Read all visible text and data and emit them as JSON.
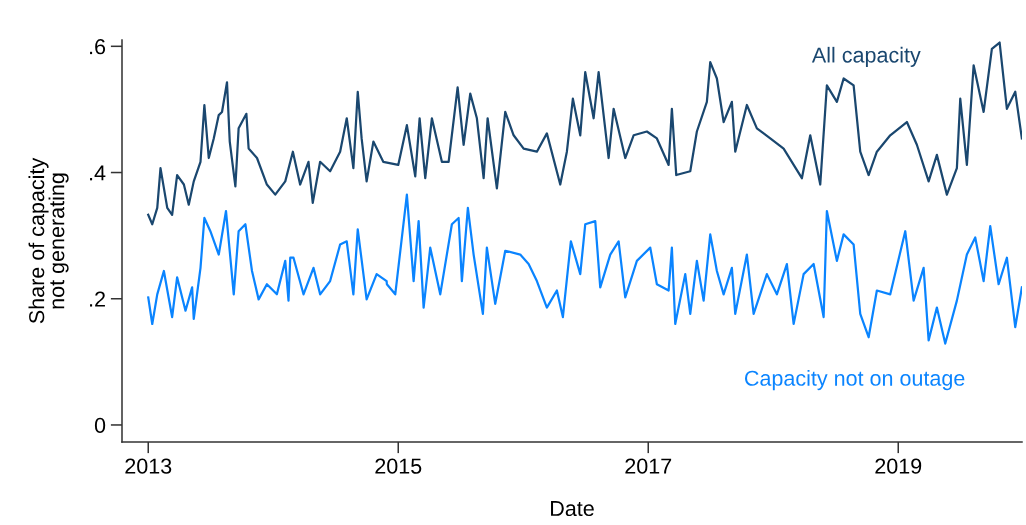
{
  "chart_data": {
    "type": "line",
    "xlabel": "Date",
    "ylabel": "Share of capacity\nnot generating",
    "xlim": [
      2012.79,
      2019.99
    ],
    "xticks": [
      2013,
      2015,
      2017,
      2019
    ],
    "ylim": [
      -0.027,
      0.61
    ],
    "yticks": [
      0,
      {
        "value": 0.2,
        "label": ".2"
      },
      {
        "value": 0.4,
        "label": ".4"
      },
      {
        "value": 0.6,
        "label": ".6"
      }
    ],
    "grid": false,
    "legend": false,
    "line_style": "solid",
    "marker": "none",
    "series": [
      {
        "name": "All capacity",
        "color": "#1a476f",
        "x": [
          2013.0,
          2013.032,
          2013.072,
          2013.098,
          2013.152,
          2013.191,
          2013.231,
          2013.285,
          2013.324,
          2013.364,
          2013.418,
          2013.449,
          2013.484,
          2013.524,
          2013.564,
          2013.59,
          2013.63,
          2013.652,
          2013.697,
          2013.723,
          2013.785,
          2013.803,
          2013.87,
          2013.949,
          2014.016,
          2014.096,
          2014.157,
          2014.215,
          2014.282,
          2014.316,
          2014.375,
          2014.455,
          2014.535,
          2014.588,
          2014.641,
          2014.676,
          2014.707,
          2014.747,
          2014.801,
          2014.88,
          2015.0,
          2015.069,
          2015.136,
          2015.171,
          2015.216,
          2015.269,
          2015.349,
          2015.403,
          2015.475,
          2015.523,
          2015.576,
          2015.629,
          2015.683,
          2015.715,
          2015.789,
          2015.856,
          2015.923,
          2016.003,
          2016.109,
          2016.189,
          2016.296,
          2016.349,
          2016.397,
          2016.456,
          2016.496,
          2016.563,
          2016.603,
          2016.683,
          2016.723,
          2016.816,
          2016.883,
          2016.989,
          2017.069,
          2017.163,
          2017.189,
          2017.224,
          2017.336,
          2017.389,
          2017.469,
          2017.496,
          2017.549,
          2017.603,
          2017.669,
          2017.696,
          2017.789,
          2017.869,
          2017.976,
          2018.083,
          2018.229,
          2018.296,
          2018.376,
          2018.429,
          2018.509,
          2018.563,
          2018.643,
          2018.696,
          2018.763,
          2018.829,
          2018.936,
          2019.069,
          2019.149,
          2019.243,
          2019.309,
          2019.389,
          2019.469,
          2019.496,
          2019.549,
          2019.603,
          2019.683,
          2019.749,
          2019.811,
          2019.869,
          2019.936,
          2019.989
        ],
        "values": [
          0.333,
          0.318,
          0.344,
          0.407,
          0.344,
          0.333,
          0.396,
          0.381,
          0.349,
          0.386,
          0.417,
          0.507,
          0.423,
          0.454,
          0.491,
          0.496,
          0.543,
          0.449,
          0.378,
          0.47,
          0.493,
          0.438,
          0.423,
          0.381,
          0.365,
          0.386,
          0.433,
          0.381,
          0.417,
          0.352,
          0.417,
          0.402,
          0.433,
          0.486,
          0.407,
          0.528,
          0.454,
          0.386,
          0.449,
          0.417,
          0.412,
          0.475,
          0.394,
          0.486,
          0.391,
          0.486,
          0.417,
          0.417,
          0.535,
          0.444,
          0.525,
          0.486,
          0.391,
          0.486,
          0.375,
          0.496,
          0.459,
          0.438,
          0.433,
          0.462,
          0.381,
          0.433,
          0.517,
          0.459,
          0.559,
          0.486,
          0.559,
          0.423,
          0.501,
          0.423,
          0.459,
          0.465,
          0.454,
          0.412,
          0.501,
          0.396,
          0.402,
          0.465,
          0.512,
          0.575,
          0.549,
          0.48,
          0.512,
          0.433,
          0.507,
          0.47,
          0.454,
          0.438,
          0.391,
          0.459,
          0.381,
          0.538,
          0.512,
          0.549,
          0.538,
          0.433,
          0.396,
          0.433,
          0.459,
          0.48,
          0.444,
          0.386,
          0.428,
          0.365,
          0.407,
          0.517,
          0.412,
          0.57,
          0.496,
          0.596,
          0.606,
          0.501,
          0.528,
          0.454
        ]
      },
      {
        "name": "Capacity not on outage",
        "color": "#0a84ff",
        "x": [
          2013.0,
          2013.032,
          2013.072,
          2013.125,
          2013.191,
          2013.231,
          2013.298,
          2013.351,
          2013.364,
          2013.418,
          2013.449,
          2013.497,
          2013.564,
          2013.622,
          2013.684,
          2013.723,
          2013.777,
          2013.83,
          2013.883,
          2013.949,
          2014.029,
          2014.096,
          2014.122,
          2014.136,
          2014.162,
          2014.242,
          2014.322,
          2014.375,
          2014.455,
          2014.535,
          2014.588,
          2014.641,
          2014.676,
          2014.747,
          2014.827,
          2014.907,
          2014.909,
          2014.976,
          2015.069,
          2015.123,
          2015.163,
          2015.203,
          2015.256,
          2015.336,
          2015.429,
          2015.483,
          2015.509,
          2015.557,
          2015.603,
          2015.677,
          2015.709,
          2015.776,
          2015.856,
          2015.976,
          2016.043,
          2016.109,
          2016.189,
          2016.269,
          2016.317,
          2016.381,
          2016.456,
          2016.496,
          2016.576,
          2016.616,
          2016.696,
          2016.763,
          2016.816,
          2016.909,
          2017.016,
          2017.069,
          2017.163,
          2017.189,
          2017.216,
          2017.296,
          2017.336,
          2017.389,
          2017.443,
          2017.496,
          2017.549,
          2017.603,
          2017.669,
          2017.696,
          2017.789,
          2017.843,
          2017.949,
          2018.029,
          2018.109,
          2018.163,
          2018.243,
          2018.323,
          2018.403,
          2018.429,
          2018.509,
          2018.563,
          2018.643,
          2018.696,
          2018.763,
          2018.829,
          2018.936,
          2019.056,
          2019.123,
          2019.203,
          2019.243,
          2019.309,
          2019.376,
          2019.469,
          2019.549,
          2019.616,
          2019.683,
          2019.736,
          2019.803,
          2019.869,
          2019.936,
          2019.989
        ],
        "values": [
          0.202,
          0.16,
          0.207,
          0.244,
          0.171,
          0.234,
          0.181,
          0.218,
          0.168,
          0.249,
          0.328,
          0.307,
          0.27,
          0.339,
          0.207,
          0.307,
          0.318,
          0.244,
          0.199,
          0.223,
          0.207,
          0.26,
          0.197,
          0.265,
          0.265,
          0.207,
          0.249,
          0.207,
          0.228,
          0.286,
          0.291,
          0.207,
          0.31,
          0.199,
          0.239,
          0.228,
          0.223,
          0.207,
          0.365,
          0.228,
          0.323,
          0.186,
          0.281,
          0.207,
          0.318,
          0.328,
          0.228,
          0.344,
          0.27,
          0.176,
          0.281,
          0.192,
          0.276,
          0.27,
          0.255,
          0.228,
          0.186,
          0.213,
          0.171,
          0.291,
          0.239,
          0.318,
          0.323,
          0.218,
          0.27,
          0.291,
          0.202,
          0.26,
          0.281,
          0.223,
          0.213,
          0.281,
          0.16,
          0.239,
          0.176,
          0.26,
          0.197,
          0.302,
          0.244,
          0.207,
          0.249,
          0.176,
          0.27,
          0.176,
          0.239,
          0.207,
          0.255,
          0.16,
          0.239,
          0.255,
          0.171,
          0.339,
          0.26,
          0.302,
          0.286,
          0.176,
          0.139,
          0.213,
          0.207,
          0.307,
          0.197,
          0.249,
          0.134,
          0.186,
          0.129,
          0.197,
          0.27,
          0.297,
          0.228,
          0.315,
          0.223,
          0.265,
          0.155,
          0.218
        ]
      }
    ]
  }
}
